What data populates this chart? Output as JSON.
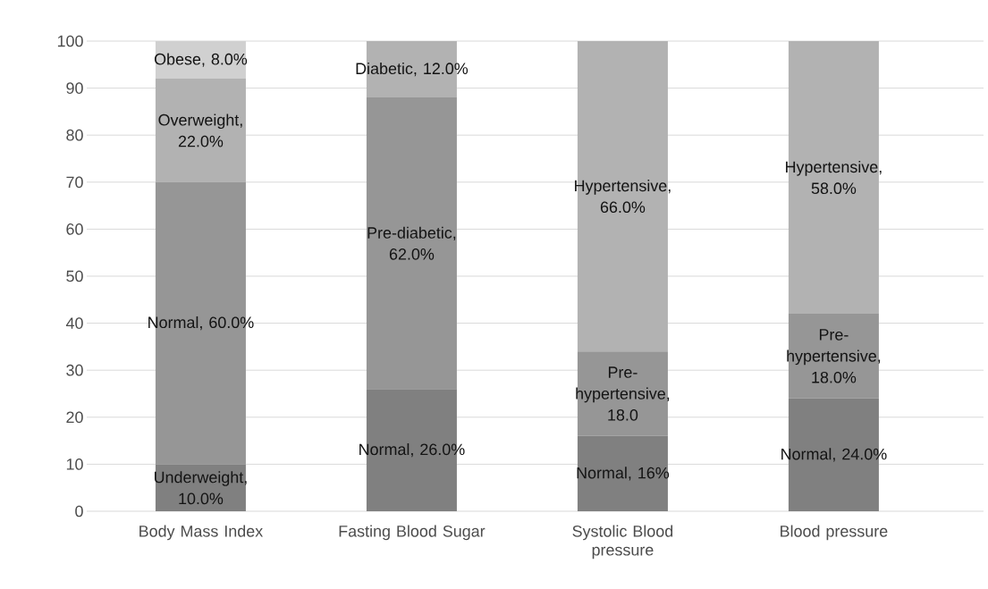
{
  "chart_data": {
    "type": "bar",
    "stacked": true,
    "categories": [
      "Body Mass Index",
      "Fasting Blood Sugar",
      "Systolic Blood pressure",
      "Blood pressure"
    ],
    "series": [
      {
        "color": "#808080",
        "values": [
          10,
          26,
          16,
          24
        ],
        "value_labels": [
          "Underweight, 10.0%",
          "Normal, 26.0%",
          "Normal, 16%",
          "Normal, 24.0%"
        ]
      },
      {
        "color": "#969696",
        "values": [
          60,
          62,
          18,
          18
        ],
        "value_labels": [
          "Normal, 60.0%",
          "Pre-diabetic, 62.0%",
          "Pre-hypertensive, 18.0",
          "Pre-hypertensive, 18.0%"
        ]
      },
      {
        "color": "#b2b2b2",
        "values": [
          22,
          12,
          66,
          58
        ],
        "value_labels": [
          "Overweight, 22.0%",
          "Diabetic, 12.0%",
          "Hypertensive, 66.0%",
          "Hypertensive, 58.0%"
        ]
      },
      {
        "color": "#d0d0d0",
        "values": [
          8,
          null,
          null,
          null
        ],
        "value_labels": [
          "Obese, 8.0%",
          null,
          null,
          null
        ]
      }
    ],
    "ylim": [
      0,
      100
    ],
    "yticks": [
      0,
      10,
      20,
      30,
      40,
      50,
      60,
      70,
      80,
      90,
      100
    ],
    "grid": "y"
  }
}
